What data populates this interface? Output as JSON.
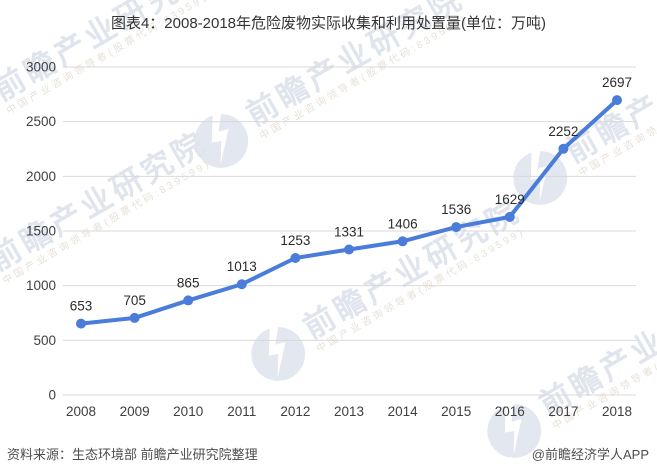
{
  "title": "图表4：2008-2018年危险废物实际收集和利用处置量(单位：万吨)",
  "chart_data": {
    "type": "line",
    "title": "图表4：2008-2018年危险废物实际收集和利用处置量(单位：万吨)",
    "categories": [
      "2008",
      "2009",
      "2010",
      "2011",
      "2012",
      "2013",
      "2014",
      "2015",
      "2016",
      "2017",
      "2018"
    ],
    "series": [
      {
        "values": [
          653,
          705,
          865,
          1013,
          1253,
          1331,
          1406,
          1536,
          1629,
          2252,
          2697
        ],
        "color": "#4A7CD9"
      }
    ],
    "ylim": [
      0,
      3000
    ],
    "ytick_step": 500,
    "xlabel": "",
    "ylabel": "",
    "grid": "horizontal",
    "grid_color": "#D9D9D9",
    "axis_label_color": "#404040",
    "data_label_color": "#2b2b2b",
    "data_labels": true,
    "legend_position": "none",
    "marker": "circle"
  },
  "footer": {
    "source": "资料来源：生态环境部 前瞻产业研究院整理",
    "brand": "@前瞻经济学人APP"
  },
  "watermark": {
    "icon": "qianzhan-logo",
    "text_large": "前瞻产业研究院",
    "text_small": "中国产业咨询领导者(股票代码:839599)",
    "color_large": "#e0e4ed",
    "color_small": "#e7e1d7"
  }
}
